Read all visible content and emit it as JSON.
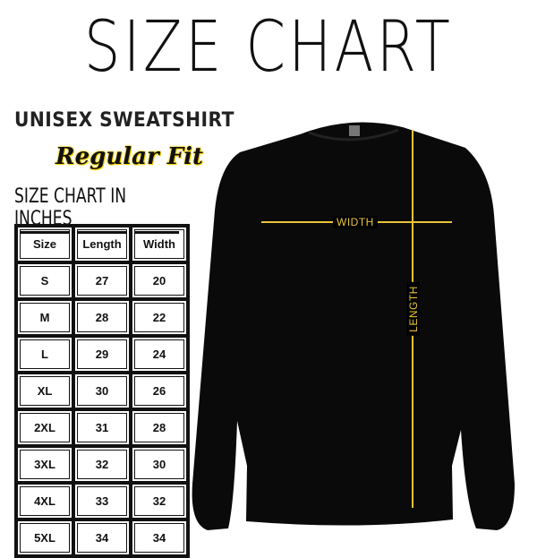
{
  "title": "SIZE CHART",
  "subtitle": "UNISEX SWEATSHIRT",
  "fit": "Regular Fit",
  "chart_heading": "SIZE CHART IN INCHES",
  "table": {
    "headers": [
      "Size",
      "Length",
      "Width"
    ],
    "rows": [
      [
        "S",
        "27",
        "20"
      ],
      [
        "M",
        "28",
        "22"
      ],
      [
        "L",
        "29",
        "24"
      ],
      [
        "XL",
        "30",
        "26"
      ],
      [
        "2XL",
        "31",
        "28"
      ],
      [
        "3XL",
        "32",
        "30"
      ],
      [
        "4XL",
        "33",
        "32"
      ],
      [
        "5XL",
        "34",
        "34"
      ]
    ]
  },
  "labels": {
    "width": "WIDTH",
    "length": "LENGTH"
  },
  "colors": {
    "garment": "#0a0a0a",
    "measure_line": "#e8c43a",
    "fit_highlight": "#f5d000"
  }
}
